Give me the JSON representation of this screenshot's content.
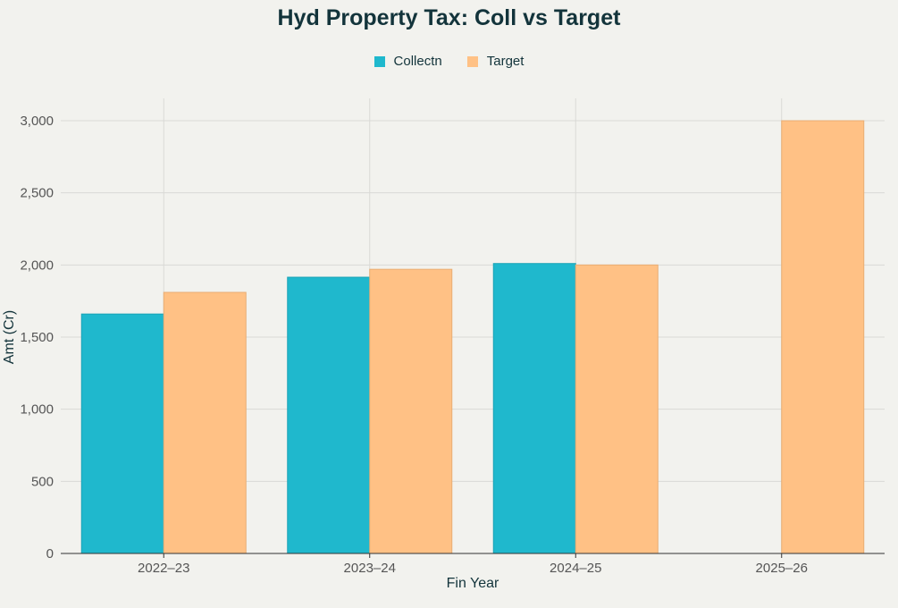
{
  "chart_data": {
    "type": "bar",
    "title": "Hyd Property Tax: Coll vs Target",
    "xlabel": "Fin Year",
    "ylabel": "Amt (Cr)",
    "categories": [
      "2022–23",
      "2023–24",
      "2024–25",
      "2025–26"
    ],
    "series": [
      {
        "name": "Collectn",
        "color": "#1fb8cd",
        "values": [
          1660,
          1915,
          2010,
          null
        ]
      },
      {
        "name": "Target",
        "color": "#ffc185",
        "values": [
          1810,
          1970,
          2000,
          3000
        ]
      }
    ],
    "ylim": [
      0,
      3000
    ],
    "yticks": [
      0,
      500,
      1000,
      1500,
      2000,
      2500,
      3000
    ],
    "ytick_labels": [
      "0",
      "500",
      "1,000",
      "1,500",
      "2,000",
      "2,500",
      "3,000"
    ],
    "grid": true,
    "legend_position": "top-center"
  }
}
